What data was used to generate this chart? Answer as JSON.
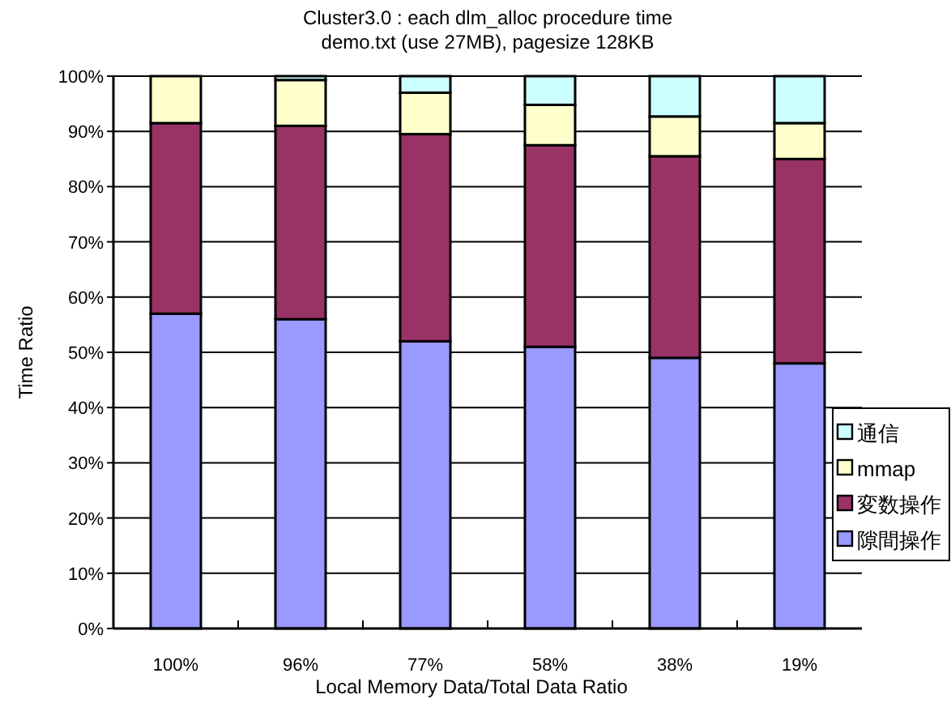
{
  "chart_data": {
    "type": "bar",
    "stacked": true,
    "title": "Cluster3.0 : each dlm_alloc procedure time",
    "subtitle": "demo.txt (use 27MB), pagesize 128KB",
    "xlabel": "Local Memory Data/Total Data Ratio",
    "ylabel": "Time Ratio",
    "categories": [
      "100%",
      "96%",
      "77%",
      "58%",
      "38%",
      "19%"
    ],
    "series": [
      {
        "name": "隙間操作",
        "color": "#9999ff",
        "values": [
          57,
          56,
          52,
          51,
          49,
          48
        ]
      },
      {
        "name": "変数操作",
        "color": "#993366",
        "values": [
          34.5,
          35,
          37.5,
          36.5,
          36.5,
          37
        ]
      },
      {
        "name": "mmap",
        "color": "#ffffcc",
        "values": [
          8.5,
          8.3,
          7.5,
          7.3,
          7.2,
          6.5
        ]
      },
      {
        "name": "通信",
        "color": "#ccffff",
        "values": [
          0,
          0.7,
          3,
          5.2,
          7.3,
          8.5
        ]
      }
    ],
    "ylim": [
      0,
      100
    ],
    "yticks": [
      {
        "value": 0,
        "label": "0%"
      },
      {
        "value": 10,
        "label": "10%"
      },
      {
        "value": 20,
        "label": "20%"
      },
      {
        "value": 30,
        "label": "30%"
      },
      {
        "value": 40,
        "label": "40%"
      },
      {
        "value": 50,
        "label": "50%"
      },
      {
        "value": 60,
        "label": "60%"
      },
      {
        "value": 70,
        "label": "70%"
      },
      {
        "value": 80,
        "label": "80%"
      },
      {
        "value": 90,
        "label": "90%"
      },
      {
        "value": 100,
        "label": "100%"
      }
    ],
    "grid": "y",
    "legend": "right"
  }
}
